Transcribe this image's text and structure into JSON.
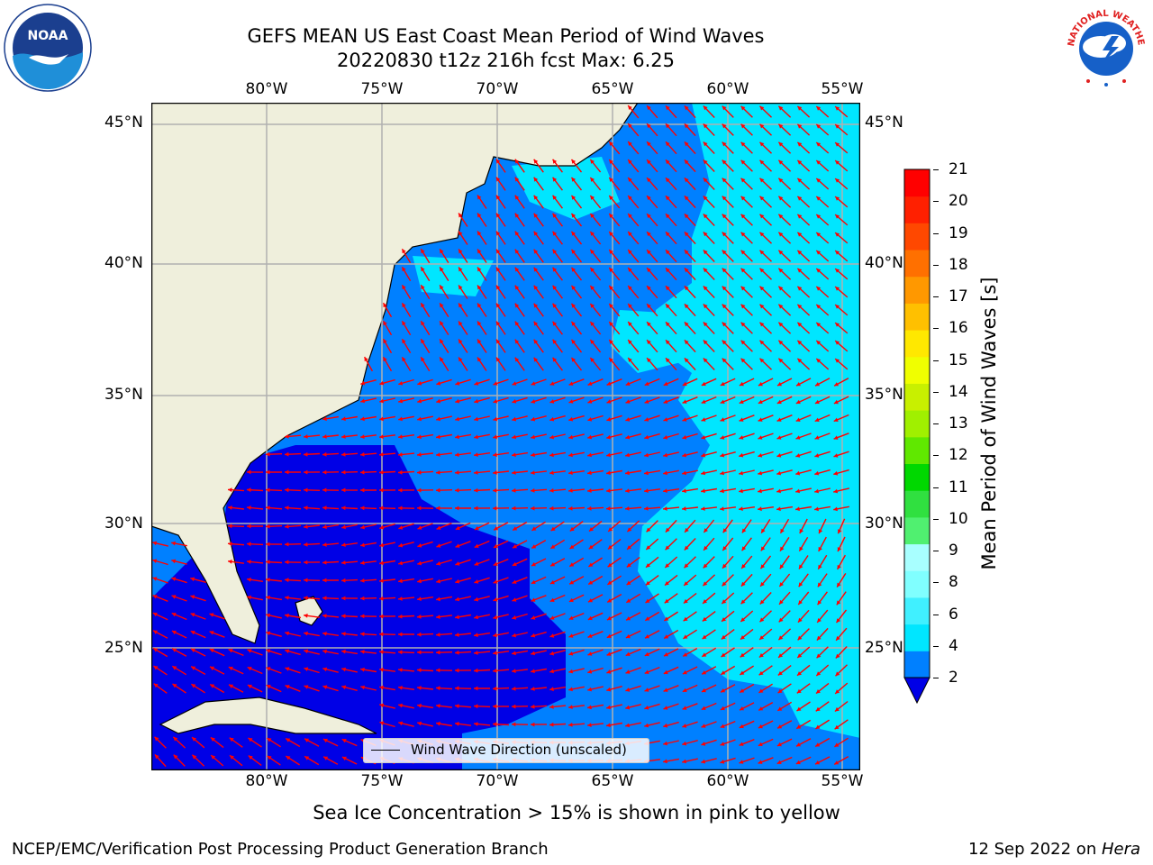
{
  "title": {
    "line1": "GEFS MEAN US East Coast Mean Period of Wind Waves",
    "line2": "20220830 t12z 216h fcst   Max: 6.25"
  },
  "logos": {
    "left": {
      "text": "NOAA",
      "icon": "noaa-logo-icon"
    },
    "right": {
      "text": "NATIONAL WEATHER SERVICE",
      "icon": "nws-logo-icon"
    }
  },
  "map": {
    "lon_labels": [
      "80°W",
      "75°W",
      "70°W",
      "65°W",
      "60°W",
      "55°W"
    ],
    "lat_labels": [
      "45°N",
      "40°N",
      "35°N",
      "30°N",
      "25°N"
    ],
    "legend_label": "Wind Wave Direction (unscaled)",
    "arrow_color": "#ff0000",
    "land_color": "#efefdc",
    "grid_color": "#b0b0b0"
  },
  "colorbar": {
    "label": "Mean Period of Wind Waves [s]",
    "ticks": [
      "2",
      "4",
      "6",
      "8",
      "9",
      "10",
      "11",
      "12",
      "13",
      "14",
      "15",
      "16",
      "17",
      "18",
      "19",
      "20",
      "21"
    ],
    "colors": [
      "#0080ff",
      "#00e6ff",
      "#40f0ff",
      "#80ffff",
      "#a8ffff",
      "#50f070",
      "#30e040",
      "#00d800",
      "#60e800",
      "#a0f000",
      "#c8f000",
      "#f0ff00",
      "#ffe800",
      "#ffc000",
      "#ff9800",
      "#ff7000",
      "#ff4800",
      "#ff2000",
      "#ff0000"
    ],
    "under_color": "#0000e6"
  },
  "footer": {
    "sea_ice": "Sea Ice Concentration > 15% is shown in pink to yellow",
    "org": "NCEP/EMC/Verification Post Processing Product Generation Branch",
    "date": "12 Sep 2022 on ",
    "machine": "Hera"
  }
}
